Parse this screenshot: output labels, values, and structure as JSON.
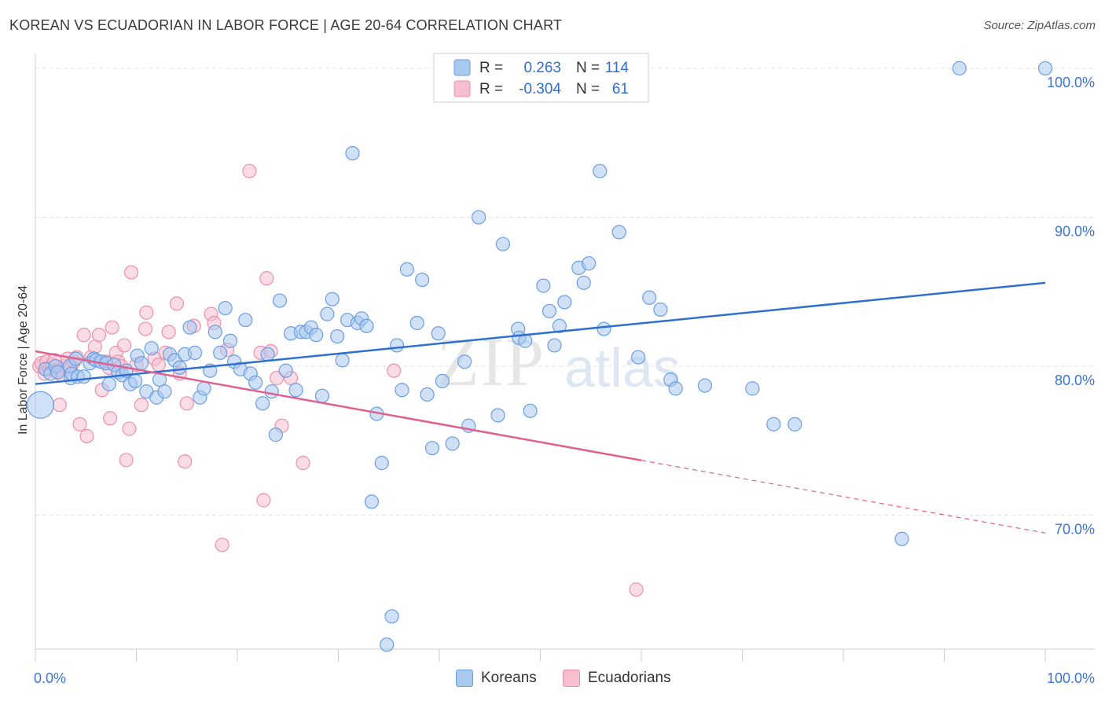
{
  "title": "KOREAN VS ECUADORIAN IN LABOR FORCE | AGE 20-64 CORRELATION CHART",
  "source": "Source: ZipAtlas.com",
  "watermark": "ZIPatlas",
  "legend_top": {
    "rows": [
      {
        "r_label": "R =",
        "r_value": "0.263",
        "n_label": "N =",
        "n_value": "114"
      },
      {
        "r_label": "R =",
        "r_value": "-0.304",
        "n_label": "N =",
        "n_value": "61"
      }
    ]
  },
  "legend_bottom": {
    "items": [
      {
        "label": "Koreans"
      },
      {
        "label": "Ecuadorians"
      }
    ]
  },
  "colors": {
    "koreans_fill": "#a9c8f0",
    "koreans_stroke": "#6a9ee0",
    "koreans_line": "#2f6fd0",
    "ecuadorians_fill": "#f6bfd0",
    "ecuadorians_stroke": "#ec8fb0",
    "ecuadorians_line": "#e0608f",
    "tick_label": "#3a74d4",
    "grid": "#e4e4e4"
  },
  "chart_data": {
    "type": "scatter",
    "title": "KOREAN VS ECUADORIAN IN LABOR FORCE | AGE 20-64 CORRELATION CHART",
    "xlabel": "",
    "ylabel": "In Labor Force | Age 20-64",
    "xlim": [
      0,
      100
    ],
    "ylim": [
      61.0,
      101.0
    ],
    "x_tick_labels": [
      "0.0%",
      "100.0%"
    ],
    "y_ticks": [
      70,
      80,
      90,
      100
    ],
    "y_tick_labels": [
      "70.0%",
      "80.0%",
      "90.0%",
      "100.0%"
    ],
    "grid": true,
    "legend_position": "top-center",
    "series": [
      {
        "name": "Koreans",
        "r": 0.263,
        "n": 114,
        "trend": {
          "x": [
            0,
            100
          ],
          "y": [
            78.8,
            85.6
          ],
          "dashed_from": null
        },
        "points": [
          {
            "x": 0.5,
            "y": 77.4,
            "big": true
          },
          {
            "x": 1.0,
            "y": 79.8
          },
          {
            "x": 1.5,
            "y": 79.5
          },
          {
            "x": 2.0,
            "y": 80.0
          },
          {
            "x": 2.2,
            "y": 79.6
          },
          {
            "x": 3.4,
            "y": 80.0
          },
          {
            "x": 3.5,
            "y": 79.2
          },
          {
            "x": 3.6,
            "y": 79.5
          },
          {
            "x": 4.0,
            "y": 80.5
          },
          {
            "x": 4.2,
            "y": 79.3
          },
          {
            "x": 4.8,
            "y": 79.3
          },
          {
            "x": 5.4,
            "y": 80.2
          },
          {
            "x": 5.8,
            "y": 80.5
          },
          {
            "x": 6.0,
            "y": 80.4
          },
          {
            "x": 6.5,
            "y": 80.3
          },
          {
            "x": 7.0,
            "y": 80.2
          },
          {
            "x": 7.3,
            "y": 78.8
          },
          {
            "x": 7.8,
            "y": 80.1
          },
          {
            "x": 8.2,
            "y": 79.6
          },
          {
            "x": 8.6,
            "y": 79.4
          },
          {
            "x": 9.0,
            "y": 79.7
          },
          {
            "x": 9.4,
            "y": 78.8
          },
          {
            "x": 9.9,
            "y": 79.0
          },
          {
            "x": 10.1,
            "y": 80.7
          },
          {
            "x": 10.5,
            "y": 80.2
          },
          {
            "x": 11.0,
            "y": 78.3
          },
          {
            "x": 11.5,
            "y": 81.2
          },
          {
            "x": 12.0,
            "y": 77.9
          },
          {
            "x": 12.3,
            "y": 79.1
          },
          {
            "x": 12.8,
            "y": 78.3
          },
          {
            "x": 13.3,
            "y": 80.8
          },
          {
            "x": 13.8,
            "y": 80.4
          },
          {
            "x": 14.3,
            "y": 79.9
          },
          {
            "x": 14.8,
            "y": 80.8
          },
          {
            "x": 15.3,
            "y": 82.6
          },
          {
            "x": 15.8,
            "y": 80.9
          },
          {
            "x": 16.3,
            "y": 77.9
          },
          {
            "x": 16.7,
            "y": 78.5
          },
          {
            "x": 17.3,
            "y": 79.7
          },
          {
            "x": 17.8,
            "y": 82.3
          },
          {
            "x": 18.3,
            "y": 80.9
          },
          {
            "x": 18.8,
            "y": 83.9
          },
          {
            "x": 19.3,
            "y": 81.7
          },
          {
            "x": 19.7,
            "y": 80.3
          },
          {
            "x": 20.3,
            "y": 79.8
          },
          {
            "x": 20.8,
            "y": 83.1
          },
          {
            "x": 21.3,
            "y": 79.5
          },
          {
            "x": 21.8,
            "y": 78.9
          },
          {
            "x": 22.5,
            "y": 77.5
          },
          {
            "x": 23.0,
            "y": 80.8
          },
          {
            "x": 23.4,
            "y": 78.3
          },
          {
            "x": 23.8,
            "y": 75.4
          },
          {
            "x": 24.2,
            "y": 84.4
          },
          {
            "x": 24.8,
            "y": 79.7
          },
          {
            "x": 25.3,
            "y": 82.2
          },
          {
            "x": 25.8,
            "y": 78.4
          },
          {
            "x": 26.3,
            "y": 82.3
          },
          {
            "x": 26.8,
            "y": 82.3
          },
          {
            "x": 27.3,
            "y": 82.6
          },
          {
            "x": 27.8,
            "y": 82.1
          },
          {
            "x": 28.4,
            "y": 78.0
          },
          {
            "x": 28.9,
            "y": 83.5
          },
          {
            "x": 29.4,
            "y": 84.5
          },
          {
            "x": 29.9,
            "y": 82.0
          },
          {
            "x": 30.4,
            "y": 80.4
          },
          {
            "x": 30.9,
            "y": 83.1
          },
          {
            "x": 31.4,
            "y": 94.3
          },
          {
            "x": 31.9,
            "y": 82.9
          },
          {
            "x": 32.3,
            "y": 83.2
          },
          {
            "x": 32.8,
            "y": 82.7
          },
          {
            "x": 33.3,
            "y": 70.9
          },
          {
            "x": 33.8,
            "y": 76.8
          },
          {
            "x": 34.3,
            "y": 73.5
          },
          {
            "x": 34.8,
            "y": 61.3
          },
          {
            "x": 35.3,
            "y": 63.2
          },
          {
            "x": 35.8,
            "y": 81.4
          },
          {
            "x": 36.3,
            "y": 78.4
          },
          {
            "x": 36.8,
            "y": 86.5
          },
          {
            "x": 37.8,
            "y": 82.9
          },
          {
            "x": 38.3,
            "y": 85.8
          },
          {
            "x": 38.8,
            "y": 78.1
          },
          {
            "x": 39.3,
            "y": 74.5
          },
          {
            "x": 39.9,
            "y": 82.2
          },
          {
            "x": 40.3,
            "y": 79.0
          },
          {
            "x": 40.8,
            "y": 100.0
          },
          {
            "x": 41.3,
            "y": 74.8
          },
          {
            "x": 42.5,
            "y": 80.3
          },
          {
            "x": 42.9,
            "y": 76.0
          },
          {
            "x": 43.9,
            "y": 90.0
          },
          {
            "x": 45.8,
            "y": 76.7
          },
          {
            "x": 46.3,
            "y": 88.2
          },
          {
            "x": 47.8,
            "y": 82.5
          },
          {
            "x": 47.9,
            "y": 81.9
          },
          {
            "x": 48.5,
            "y": 81.7
          },
          {
            "x": 49.0,
            "y": 77.0
          },
          {
            "x": 50.3,
            "y": 85.4
          },
          {
            "x": 50.9,
            "y": 83.7
          },
          {
            "x": 51.4,
            "y": 81.4
          },
          {
            "x": 51.9,
            "y": 82.7
          },
          {
            "x": 52.4,
            "y": 84.3
          },
          {
            "x": 53.8,
            "y": 86.6
          },
          {
            "x": 54.3,
            "y": 85.6
          },
          {
            "x": 54.8,
            "y": 86.9
          },
          {
            "x": 55.9,
            "y": 93.1
          },
          {
            "x": 56.3,
            "y": 82.5
          },
          {
            "x": 57.8,
            "y": 89.0
          },
          {
            "x": 59.7,
            "y": 80.6
          },
          {
            "x": 60.8,
            "y": 84.6
          },
          {
            "x": 61.9,
            "y": 83.8
          },
          {
            "x": 62.9,
            "y": 79.1
          },
          {
            "x": 63.4,
            "y": 78.5
          },
          {
            "x": 66.3,
            "y": 78.7
          },
          {
            "x": 71.0,
            "y": 78.5
          },
          {
            "x": 73.1,
            "y": 76.1
          },
          {
            "x": 75.2,
            "y": 76.1
          },
          {
            "x": 85.8,
            "y": 68.4
          },
          {
            "x": 91.5,
            "y": 100.0
          },
          {
            "x": 100.0,
            "y": 100.0
          }
        ]
      },
      {
        "name": "Ecuadorians",
        "r": -0.304,
        "n": 61,
        "trend": {
          "x": [
            0,
            100
          ],
          "y": [
            81.0,
            68.8
          ],
          "dashed_from": 60.0
        },
        "points": [
          {
            "x": 0.4,
            "y": 80.0
          },
          {
            "x": 0.6,
            "y": 80.2
          },
          {
            "x": 0.9,
            "y": 79.5
          },
          {
            "x": 1.1,
            "y": 80.3
          },
          {
            "x": 1.4,
            "y": 79.8
          },
          {
            "x": 1.7,
            "y": 80.1
          },
          {
            "x": 1.9,
            "y": 80.4
          },
          {
            "x": 2.1,
            "y": 79.7
          },
          {
            "x": 2.4,
            "y": 77.4
          },
          {
            "x": 2.6,
            "y": 79.4
          },
          {
            "x": 2.9,
            "y": 80.0
          },
          {
            "x": 3.2,
            "y": 80.5
          },
          {
            "x": 3.5,
            "y": 79.9
          },
          {
            "x": 3.8,
            "y": 80.3
          },
          {
            "x": 4.1,
            "y": 80.6
          },
          {
            "x": 4.4,
            "y": 76.1
          },
          {
            "x": 4.8,
            "y": 82.1
          },
          {
            "x": 5.1,
            "y": 75.3
          },
          {
            "x": 5.5,
            "y": 80.6
          },
          {
            "x": 5.9,
            "y": 81.3
          },
          {
            "x": 6.3,
            "y": 82.1
          },
          {
            "x": 6.6,
            "y": 78.4
          },
          {
            "x": 7.0,
            "y": 80.3
          },
          {
            "x": 7.3,
            "y": 79.9
          },
          {
            "x": 7.6,
            "y": 82.6
          },
          {
            "x": 7.4,
            "y": 76.5
          },
          {
            "x": 8.0,
            "y": 80.9
          },
          {
            "x": 8.2,
            "y": 80.3
          },
          {
            "x": 8.5,
            "y": 80.0
          },
          {
            "x": 8.8,
            "y": 81.4
          },
          {
            "x": 9.0,
            "y": 73.7
          },
          {
            "x": 9.3,
            "y": 75.8
          },
          {
            "x": 9.5,
            "y": 86.3
          },
          {
            "x": 10.0,
            "y": 80.1
          },
          {
            "x": 10.5,
            "y": 77.4
          },
          {
            "x": 10.9,
            "y": 82.5
          },
          {
            "x": 11.0,
            "y": 83.6
          },
          {
            "x": 11.8,
            "y": 80.5
          },
          {
            "x": 12.2,
            "y": 80.1
          },
          {
            "x": 12.9,
            "y": 80.9
          },
          {
            "x": 13.2,
            "y": 82.3
          },
          {
            "x": 14.0,
            "y": 84.2
          },
          {
            "x": 14.3,
            "y": 79.5
          },
          {
            "x": 14.8,
            "y": 73.6
          },
          {
            "x": 15.0,
            "y": 77.5
          },
          {
            "x": 15.7,
            "y": 82.7
          },
          {
            "x": 17.4,
            "y": 83.5
          },
          {
            "x": 17.7,
            "y": 82.9
          },
          {
            "x": 18.5,
            "y": 68.0
          },
          {
            "x": 19.0,
            "y": 81.1
          },
          {
            "x": 21.2,
            "y": 93.1
          },
          {
            "x": 22.3,
            "y": 80.9
          },
          {
            "x": 22.6,
            "y": 71.0
          },
          {
            "x": 22.9,
            "y": 85.9
          },
          {
            "x": 23.3,
            "y": 81.0
          },
          {
            "x": 23.9,
            "y": 79.2
          },
          {
            "x": 24.4,
            "y": 76.0
          },
          {
            "x": 25.3,
            "y": 79.2
          },
          {
            "x": 26.5,
            "y": 73.5
          },
          {
            "x": 35.5,
            "y": 79.7
          },
          {
            "x": 59.5,
            "y": 65.0
          }
        ]
      }
    ]
  }
}
